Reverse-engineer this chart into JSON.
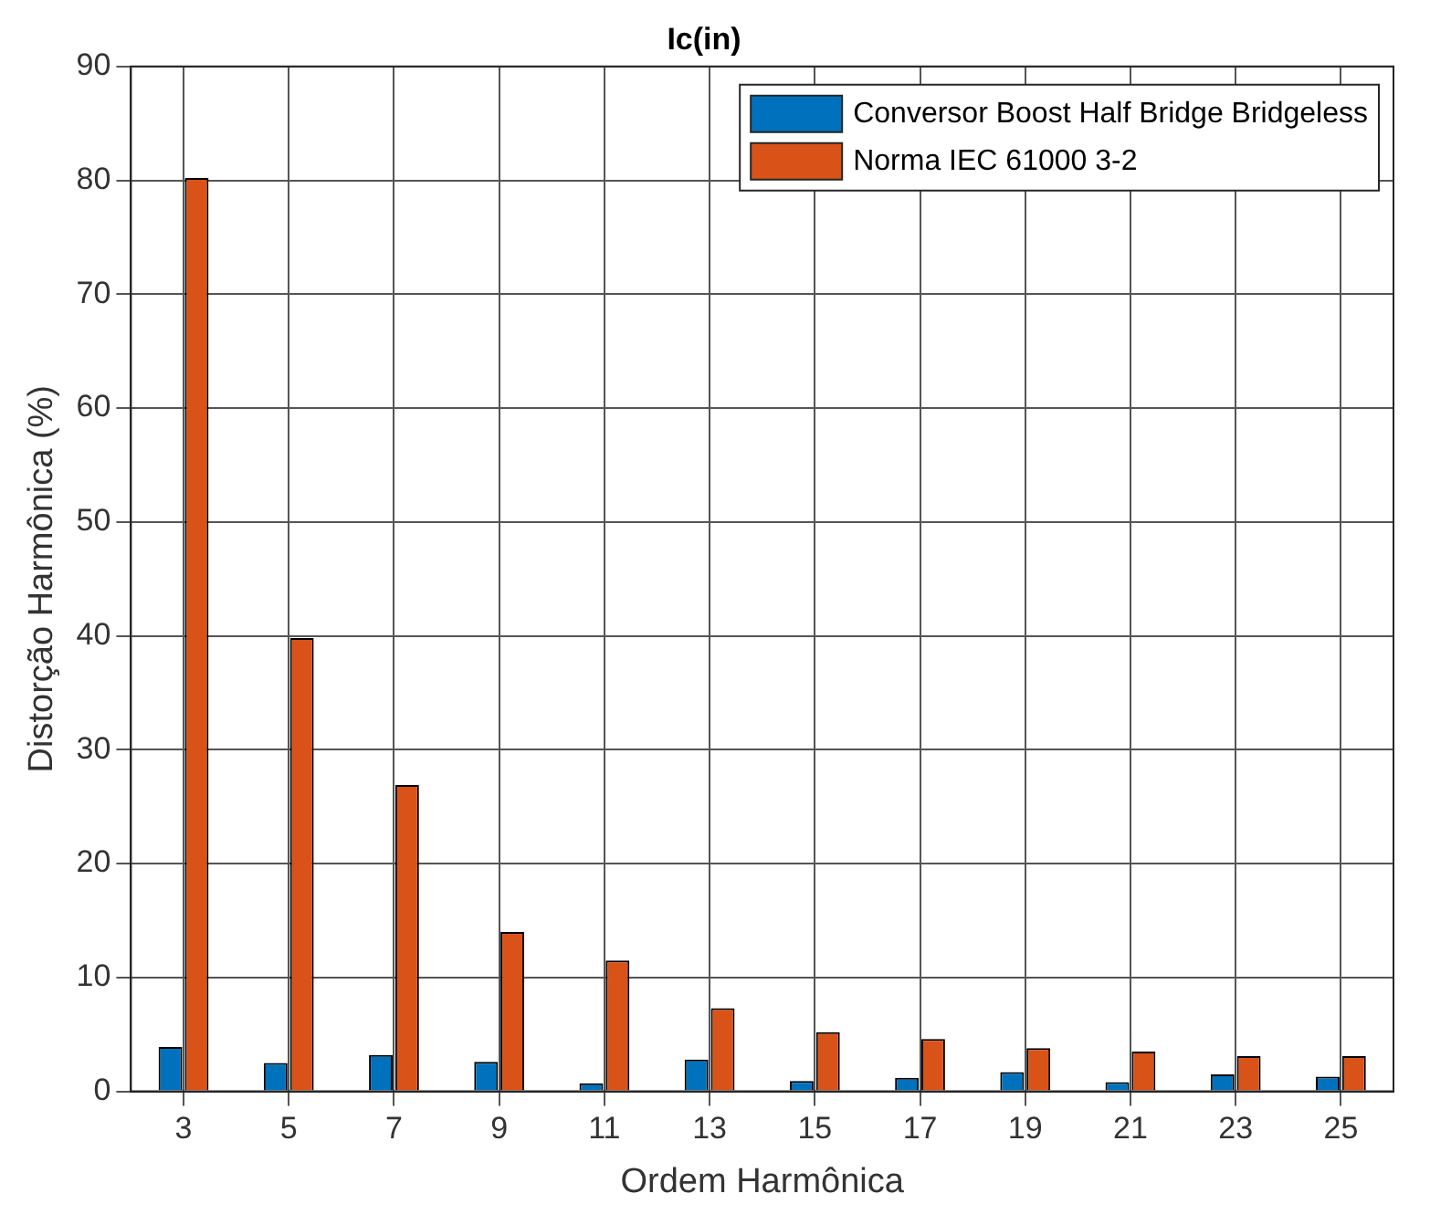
{
  "chart_data": {
    "type": "bar",
    "title": "Ic(in)",
    "xlabel": "Ordem Harmônica",
    "ylabel": "Distorção Harmônica (%)",
    "categories": [
      "3",
      "5",
      "7",
      "9",
      "11",
      "13",
      "15",
      "17",
      "19",
      "21",
      "23",
      "25"
    ],
    "series": [
      {
        "name": "Conversor Boost Half Bridge Bridgeless",
        "color": "#0072bd",
        "values": [
          3.9,
          2.5,
          3.2,
          2.6,
          0.7,
          2.8,
          0.9,
          1.2,
          1.7,
          0.8,
          1.5,
          1.3
        ]
      },
      {
        "name": "Norma IEC 61000 3-2",
        "color": "#d95319",
        "values": [
          80.2,
          39.8,
          26.9,
          14.0,
          11.5,
          7.3,
          5.2,
          4.6,
          3.8,
          3.5,
          3.1,
          3.1
        ]
      }
    ],
    "ylim": [
      0,
      90
    ],
    "yticks": [
      0,
      10,
      20,
      30,
      40,
      50,
      60,
      70,
      80,
      90
    ],
    "grid": true,
    "legend": "top right"
  }
}
